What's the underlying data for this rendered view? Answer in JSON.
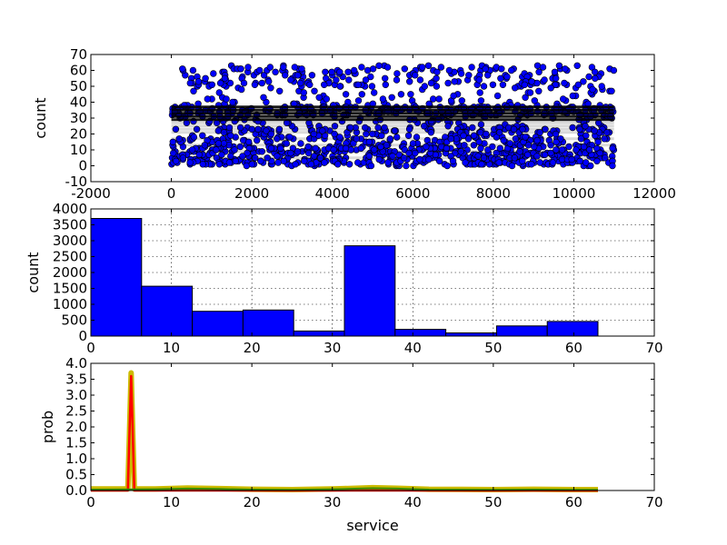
{
  "chart_data": [
    {
      "type": "scatter",
      "xlabel": "",
      "ylabel": "count",
      "xlim": [
        -2000,
        12000
      ],
      "ylim": [
        -10,
        70
      ],
      "xticks": [
        -2000,
        0,
        2000,
        4000,
        6000,
        8000,
        10000,
        12000
      ],
      "yticks": [
        -10,
        0,
        10,
        20,
        30,
        40,
        50,
        60,
        70
      ],
      "x_range_of_points": [
        0,
        11000
      ],
      "y_range_of_points": [
        0,
        63
      ],
      "point_count_approx": 11000,
      "marker_color": "#0000ff",
      "grid": false
    },
    {
      "type": "bar",
      "xlabel": "",
      "ylabel": "count",
      "xlim": [
        0,
        70
      ],
      "ylim": [
        0,
        4000
      ],
      "xticks": [
        0,
        10,
        20,
        30,
        40,
        50,
        60,
        70
      ],
      "yticks": [
        0,
        500,
        1000,
        1500,
        2000,
        2500,
        3000,
        3500,
        4000
      ],
      "bin_edges": [
        0,
        6.3,
        12.6,
        18.9,
        25.2,
        31.5,
        37.8,
        44.1,
        50.4,
        56.7,
        63
      ],
      "values": [
        3700,
        1570,
        780,
        820,
        160,
        2840,
        210,
        100,
        320,
        460
      ],
      "color": "#0000ff",
      "grid": true
    },
    {
      "type": "line",
      "xlabel": "service",
      "ylabel": "prob",
      "xlim": [
        0,
        70
      ],
      "ylim": [
        0,
        4
      ],
      "xticks": [
        0,
        10,
        20,
        30,
        40,
        50,
        60,
        70
      ],
      "yticks": [
        0.0,
        0.5,
        1.0,
        1.5,
        2.0,
        2.5,
        3.0,
        3.5,
        4.0
      ],
      "series": [
        {
          "color": "#ccbb00",
          "x": [
            0,
            4.6,
            4.8,
            5.0,
            5.2,
            5.4,
            8,
            12,
            16,
            20,
            25,
            30,
            35,
            38,
            42,
            50,
            55,
            60,
            63
          ],
          "y": [
            0.05,
            0.05,
            1.8,
            3.7,
            1.8,
            0.05,
            0.05,
            0.08,
            0.06,
            0.04,
            0.03,
            0.05,
            0.09,
            0.07,
            0.04,
            0.03,
            0.04,
            0.03,
            0.03
          ]
        },
        {
          "color": "#ff0000",
          "x": [
            0,
            4.6,
            4.8,
            5.0,
            5.2,
            5.4,
            63
          ],
          "y": [
            0.0,
            0.0,
            1.8,
            3.6,
            1.8,
            0.0,
            0.0
          ]
        },
        {
          "color": "#3a8a00",
          "x": [
            0,
            8,
            12,
            16,
            20,
            25,
            30,
            35,
            38,
            42,
            50,
            55,
            60,
            63
          ],
          "y": [
            0.03,
            0.04,
            0.06,
            0.05,
            0.03,
            0.02,
            0.04,
            0.07,
            0.06,
            0.03,
            0.02,
            0.03,
            0.02,
            0.02
          ]
        }
      ],
      "grid": false
    }
  ]
}
